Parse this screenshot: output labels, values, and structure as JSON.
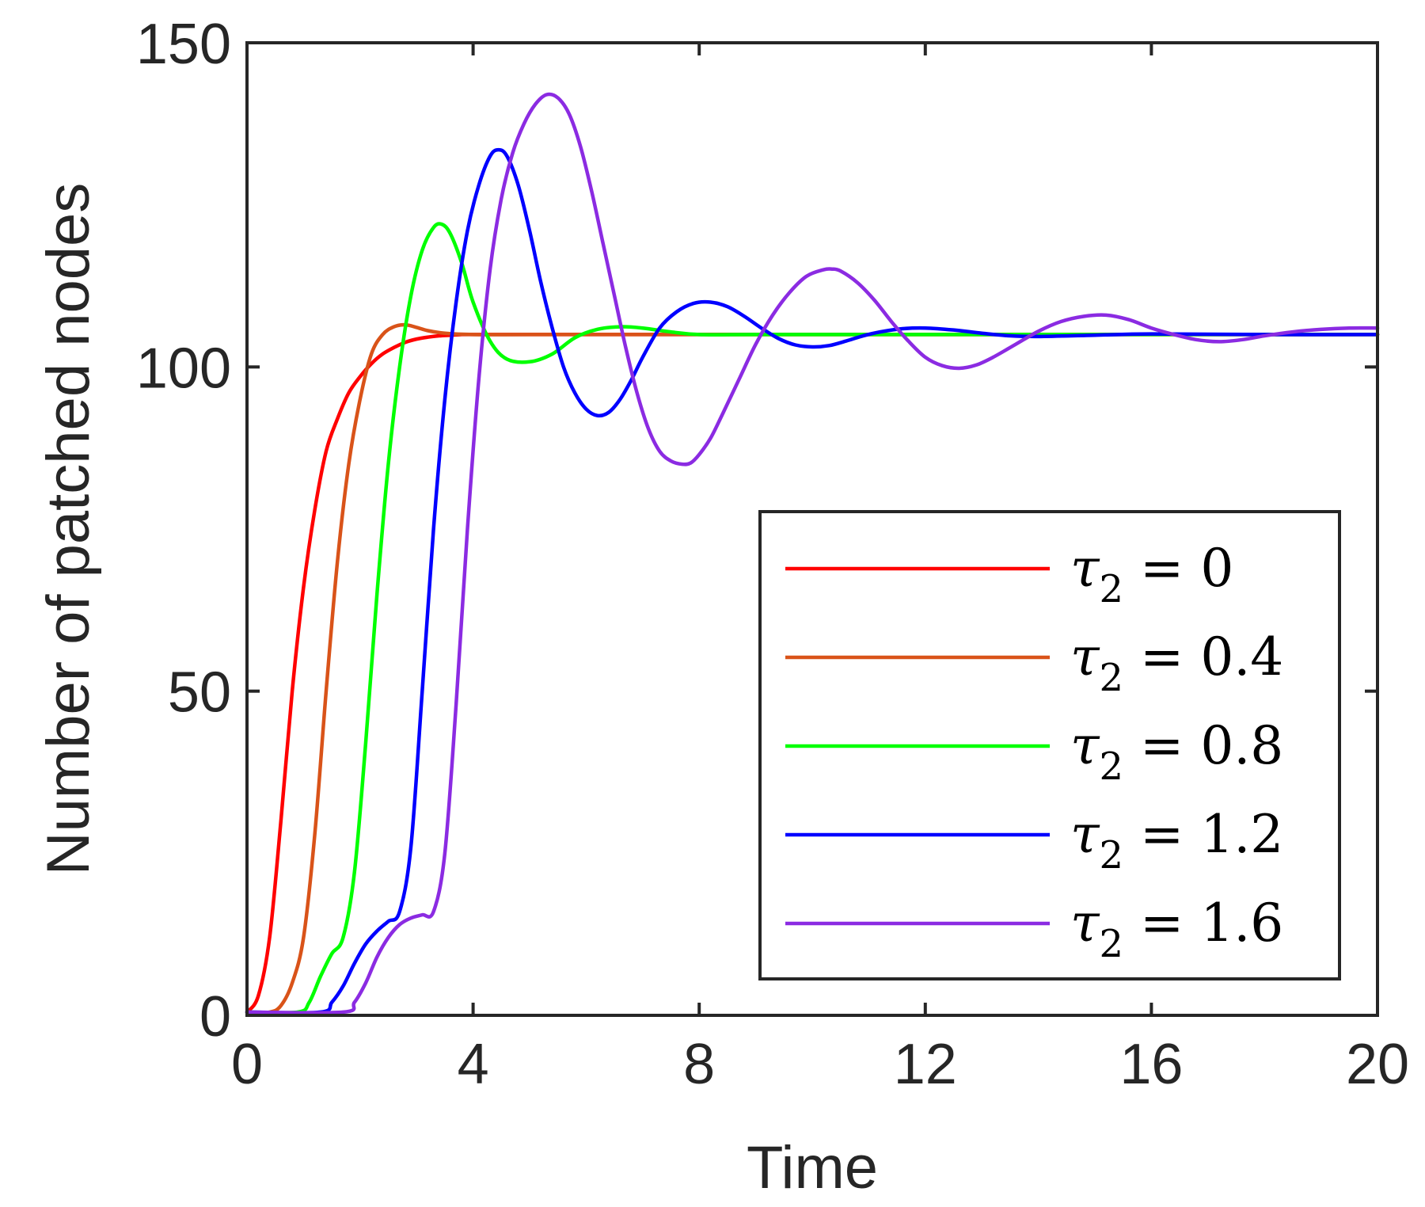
{
  "chart_data": {
    "type": "line",
    "title": "",
    "xlabel": "Time",
    "ylabel": "Number of patched nodes",
    "xlim": [
      0,
      20
    ],
    "ylim": [
      0,
      150
    ],
    "xticks": [
      0,
      4,
      8,
      12,
      16,
      20
    ],
    "xtick_labels": [
      "0",
      "4",
      "8",
      "12",
      "16",
      "20"
    ],
    "yticks": [
      0,
      50,
      100,
      150
    ],
    "ytick_labels": [
      "0",
      "50",
      "100",
      "150"
    ],
    "legend_position": "lower-right",
    "grid": false,
    "series": [
      {
        "name": "τ2 = 0",
        "symbol": "τ",
        "subscript": "2",
        "value_text": "= 0",
        "color": "#ff0000",
        "x": [
          0,
          0.2,
          0.4,
          0.6,
          0.8,
          1.0,
          1.2,
          1.4,
          1.6,
          1.8,
          2.0,
          2.2,
          2.4,
          2.6,
          2.8,
          3.0,
          3.2,
          3.4,
          3.6,
          3.8,
          4.0,
          5.0,
          8.0,
          12.0,
          16.0,
          20.0
        ],
        "y": [
          0.5,
          3,
          12,
          30,
          50,
          66,
          78,
          87,
          92,
          96,
          98.5,
          100.5,
          102,
          103,
          103.8,
          104.3,
          104.6,
          104.8,
          104.9,
          105,
          105,
          105,
          105,
          105,
          105,
          105
        ]
      },
      {
        "name": "τ2 = 0.4",
        "symbol": "τ",
        "subscript": "2",
        "value_text": "= 0.4",
        "color": "#d95319",
        "x": [
          0,
          0.4,
          0.6,
          0.8,
          1.0,
          1.2,
          1.4,
          1.6,
          1.8,
          2.0,
          2.2,
          2.4,
          2.6,
          2.8,
          3.0,
          3.2,
          3.5,
          4.0,
          5.0,
          8.0,
          12.0,
          16.0,
          20.0
        ],
        "y": [
          0.5,
          0.5,
          1.5,
          5,
          12,
          28,
          50,
          70,
          85,
          95,
          102,
          105,
          106.2,
          106.5,
          106.1,
          105.6,
          105.2,
          105,
          105,
          105,
          105,
          105,
          105
        ]
      },
      {
        "name": "τ2 = 0.8",
        "symbol": "τ",
        "subscript": "2",
        "value_text": "= 0.8",
        "color": "#00ff00",
        "x": [
          0,
          0.9,
          1.1,
          1.3,
          1.5,
          1.7,
          1.9,
          2.1,
          2.3,
          2.5,
          2.7,
          2.9,
          3.1,
          3.3,
          3.45,
          3.6,
          3.8,
          4.0,
          4.3,
          4.6,
          5.0,
          5.4,
          5.8,
          6.2,
          6.6,
          7.0,
          7.5,
          8.0,
          9.0,
          12.0,
          16.0,
          20.0
        ],
        "y": [
          0.5,
          0.5,
          2,
          6,
          9.5,
          12,
          22,
          42,
          65,
          85,
          100,
          111,
          118,
          121.5,
          122,
          120.5,
          116,
          110,
          104,
          101.2,
          100.8,
          102,
          104.5,
          105.8,
          106.2,
          106,
          105.4,
          105,
          105,
          105,
          105,
          105
        ]
      },
      {
        "name": "τ2 = 1.2",
        "symbol": "τ",
        "subscript": "2",
        "value_text": "= 1.2",
        "color": "#0000ff",
        "x": [
          0,
          1.3,
          1.5,
          1.7,
          1.9,
          2.1,
          2.3,
          2.5,
          2.7,
          2.9,
          3.1,
          3.3,
          3.5,
          3.7,
          3.9,
          4.1,
          4.3,
          4.45,
          4.6,
          4.8,
          5.0,
          5.2,
          5.4,
          5.6,
          5.8,
          6.0,
          6.2,
          6.4,
          6.6,
          6.8,
          7.0,
          7.3,
          7.6,
          7.9,
          8.2,
          8.5,
          8.8,
          9.1,
          9.4,
          9.7,
          10.0,
          10.3,
          10.6,
          10.9,
          11.2,
          11.6,
          12.0,
          12.5,
          13.0,
          13.5,
          14.0,
          15.0,
          16.0,
          18.0,
          20.0
        ],
        "y": [
          0.5,
          0.5,
          2,
          4.5,
          8,
          11,
          13,
          14.5,
          16,
          26,
          50,
          75,
          95,
          110,
          121,
          128,
          132.5,
          133.5,
          132.5,
          128,
          121,
          113,
          106,
          100,
          96,
          93.5,
          92.5,
          93,
          95,
          98,
          101.5,
          106,
          108.5,
          109.8,
          110,
          109.3,
          107.8,
          106,
          104.4,
          103.4,
          103.1,
          103.3,
          104,
          104.8,
          105.4,
          105.9,
          106,
          105.7,
          105.2,
          104.8,
          104.7,
          104.9,
          105.1,
          105,
          105
        ]
      },
      {
        "name": "τ2 = 1.6",
        "symbol": "τ",
        "subscript": "2",
        "value_text": "= 1.6",
        "color": "#8b2be2",
        "x": [
          0,
          1.7,
          1.9,
          2.1,
          2.3,
          2.5,
          2.7,
          2.9,
          3.1,
          3.3,
          3.5,
          3.7,
          3.9,
          4.1,
          4.3,
          4.5,
          4.7,
          4.9,
          5.1,
          5.3,
          5.5,
          5.7,
          5.9,
          6.1,
          6.3,
          6.5,
          6.7,
          6.9,
          7.1,
          7.3,
          7.5,
          7.7,
          7.85,
          8.0,
          8.2,
          8.4,
          8.7,
          9.0,
          9.3,
          9.6,
          9.9,
          10.2,
          10.35,
          10.5,
          10.8,
          11.1,
          11.4,
          11.7,
          12.0,
          12.3,
          12.6,
          12.9,
          13.2,
          13.6,
          14.0,
          14.4,
          14.8,
          15.2,
          15.6,
          16.0,
          16.4,
          16.8,
          17.2,
          17.6,
          18.0,
          18.5,
          19.0,
          19.5,
          20.0
        ],
        "y": [
          0.5,
          0.5,
          2,
          5,
          9,
          12,
          14,
          15,
          15.5,
          16,
          25,
          48,
          75,
          98,
          115,
          126,
          133,
          137.5,
          140.5,
          142,
          141.5,
          139,
          134,
          127,
          119,
          111,
          103,
          96,
          90.5,
          87,
          85.5,
          85,
          85.2,
          86.5,
          89,
          92.5,
          98,
          103.5,
          108,
          111.5,
          114,
          115,
          115.1,
          114.8,
          113,
          110.3,
          107,
          104,
          101.5,
          100.2,
          99.8,
          100.3,
          101.5,
          103.5,
          105.5,
          107,
          107.8,
          108,
          107.3,
          106,
          105,
          104.2,
          103.9,
          104.2,
          104.8,
          105.4,
          105.8,
          106,
          106
        ]
      }
    ]
  }
}
